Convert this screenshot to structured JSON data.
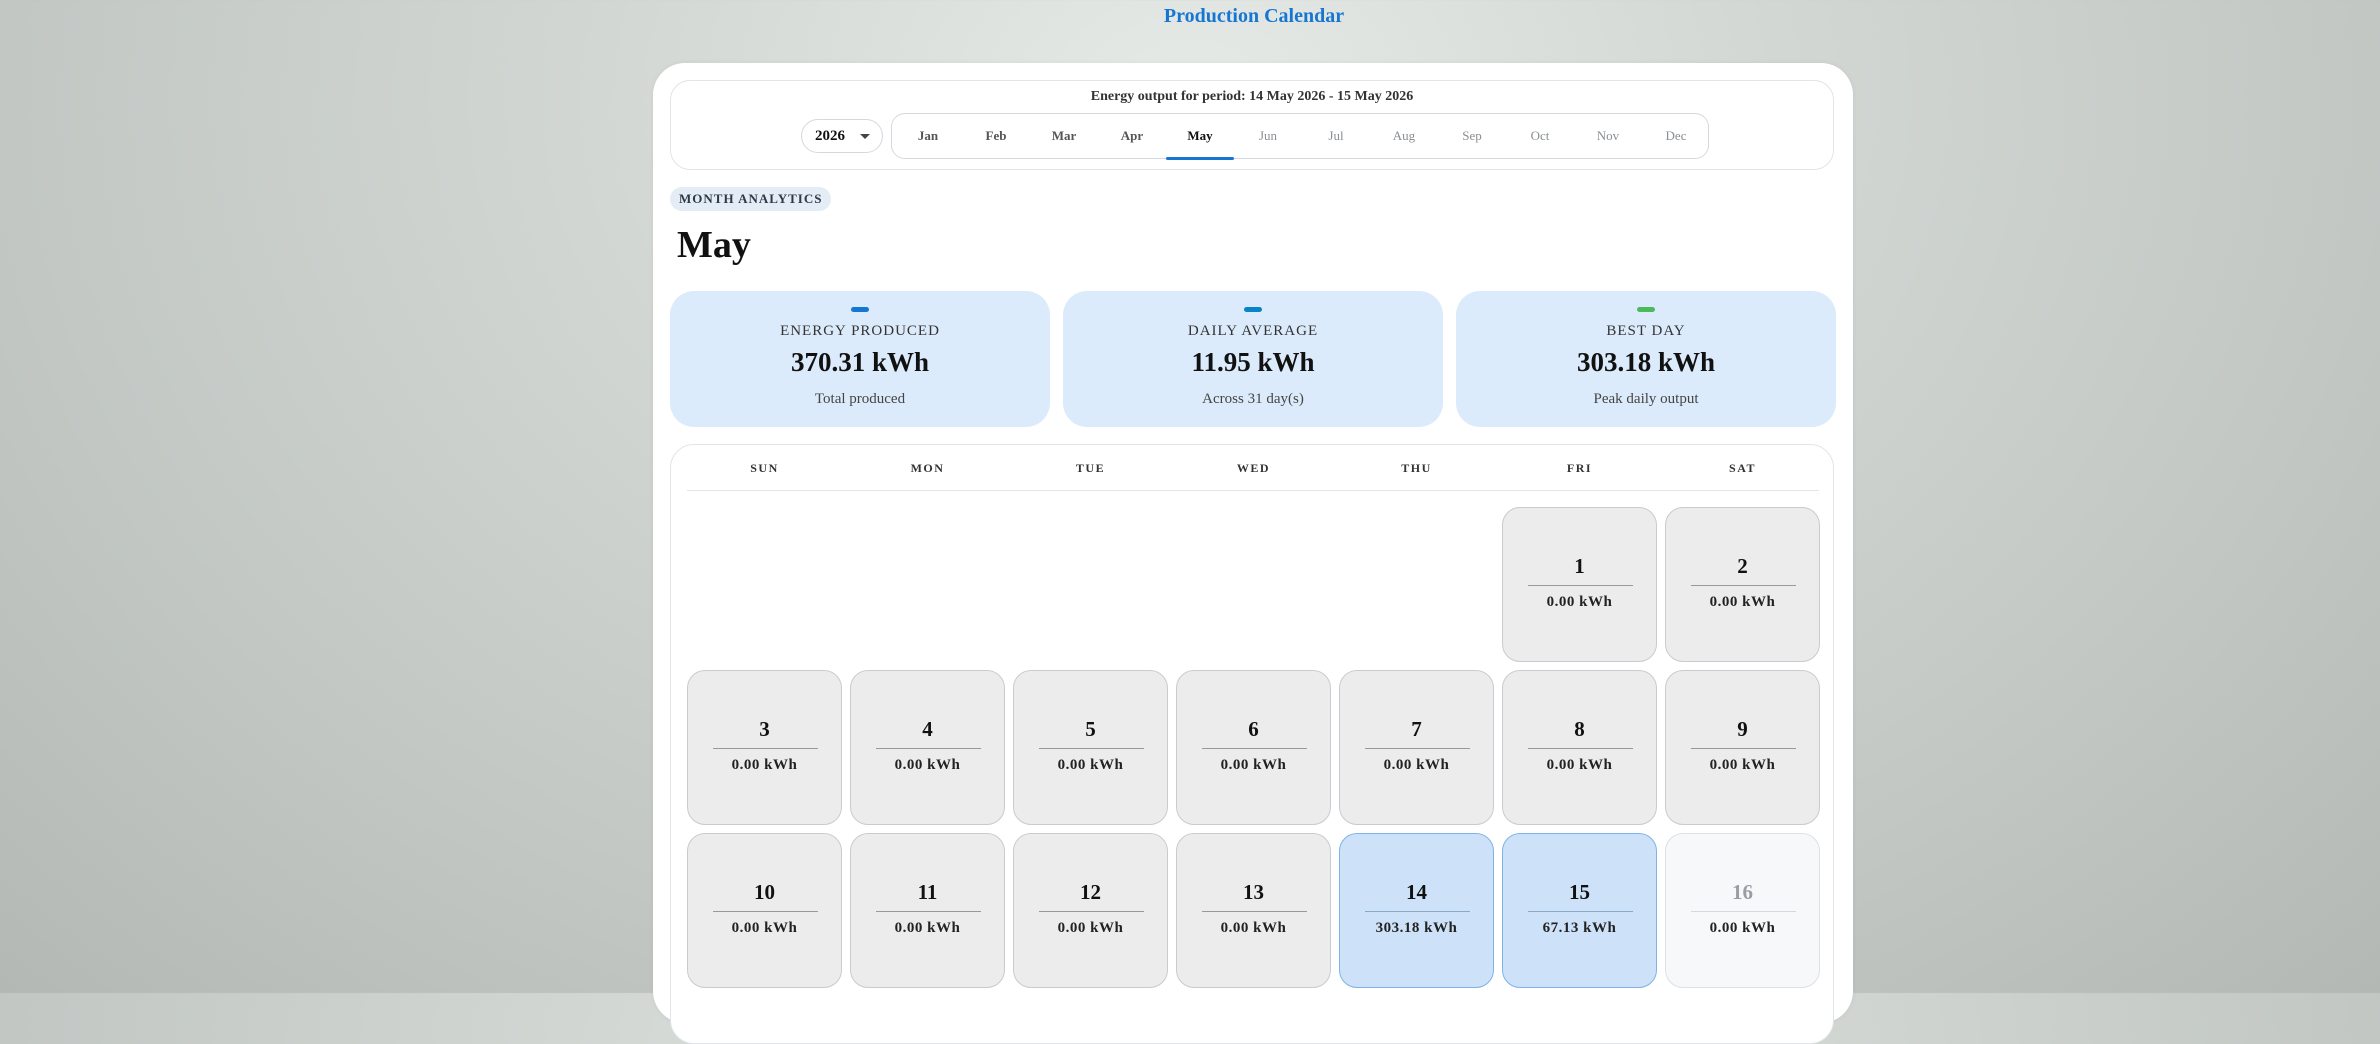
{
  "page_title": "Production Calendar",
  "period_text": "Energy output for period: 14 May 2026 - 15 May 2026",
  "year_select": {
    "value": "2026"
  },
  "months": [
    {
      "label": "Jan",
      "state": "past"
    },
    {
      "label": "Feb",
      "state": "past"
    },
    {
      "label": "Mar",
      "state": "past"
    },
    {
      "label": "Apr",
      "state": "past"
    },
    {
      "label": "May",
      "state": "active"
    },
    {
      "label": "Jun",
      "state": "future"
    },
    {
      "label": "Jul",
      "state": "future"
    },
    {
      "label": "Aug",
      "state": "future"
    },
    {
      "label": "Sep",
      "state": "future"
    },
    {
      "label": "Oct",
      "state": "future"
    },
    {
      "label": "Nov",
      "state": "future"
    },
    {
      "label": "Dec",
      "state": "future"
    }
  ],
  "section_badge": "MONTH ANALYTICS",
  "month_heading": "May",
  "stats": [
    {
      "label": "ENERGY PRODUCED",
      "value": "370.31 kWh",
      "sub": "Total produced",
      "color": "#1677d2"
    },
    {
      "label": "DAILY AVERAGE",
      "value": "11.95 kWh",
      "sub": "Across 31 day(s)",
      "color": "#0a84c9"
    },
    {
      "label": "BEST DAY",
      "value": "303.18 kWh",
      "sub": "Peak daily output",
      "color": "#4cba5a"
    }
  ],
  "weekdays": [
    "SUN",
    "MON",
    "TUE",
    "WED",
    "THU",
    "FRI",
    "SAT"
  ],
  "days": [
    {
      "day": "1",
      "kwh": "0.00 kWh",
      "state": "normal"
    },
    {
      "day": "2",
      "kwh": "0.00 kWh",
      "state": "normal"
    },
    {
      "day": "3",
      "kwh": "0.00 kWh",
      "state": "normal"
    },
    {
      "day": "4",
      "kwh": "0.00 kWh",
      "state": "normal"
    },
    {
      "day": "5",
      "kwh": "0.00 kWh",
      "state": "normal"
    },
    {
      "day": "6",
      "kwh": "0.00 kWh",
      "state": "normal"
    },
    {
      "day": "7",
      "kwh": "0.00 kWh",
      "state": "normal"
    },
    {
      "day": "8",
      "kwh": "0.00 kWh",
      "state": "normal"
    },
    {
      "day": "9",
      "kwh": "0.00 kWh",
      "state": "normal"
    },
    {
      "day": "10",
      "kwh": "0.00 kWh",
      "state": "normal"
    },
    {
      "day": "11",
      "kwh": "0.00 kWh",
      "state": "normal"
    },
    {
      "day": "12",
      "kwh": "0.00 kWh",
      "state": "normal"
    },
    {
      "day": "13",
      "kwh": "0.00 kWh",
      "state": "normal"
    },
    {
      "day": "14",
      "kwh": "303.18 kWh",
      "state": "highlight"
    },
    {
      "day": "15",
      "kwh": "67.13 kWh",
      "state": "highlight"
    },
    {
      "day": "16",
      "kwh": "0.00 kWh",
      "state": "future"
    }
  ]
}
